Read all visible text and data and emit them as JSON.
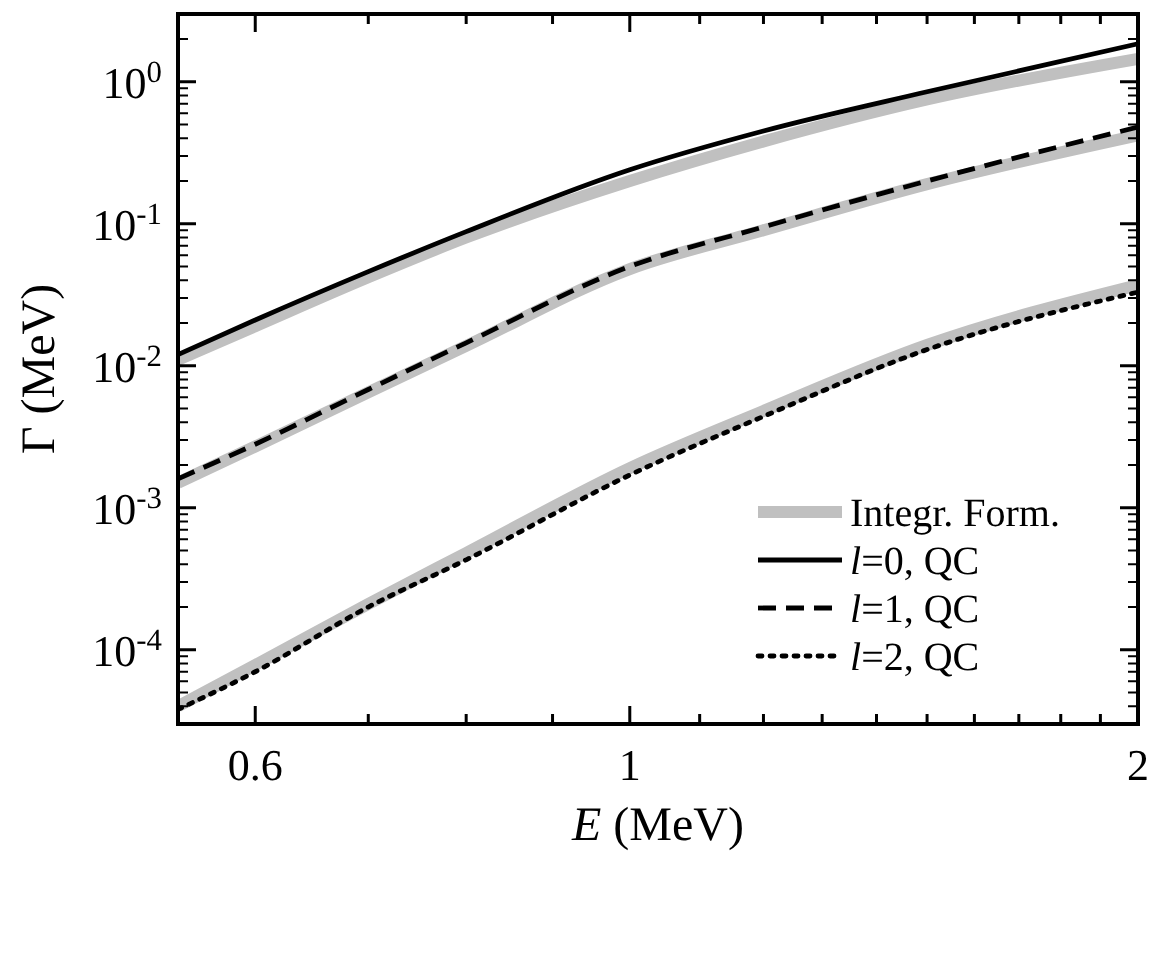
{
  "chart_data": {
    "type": "line",
    "xlabel": "E  (MeV)",
    "ylabel": "Γ  (MeV)",
    "log": "xy",
    "grid": false,
    "legend": "bottom right",
    "x": [
      0.54,
      0.6,
      0.7,
      0.8,
      1,
      1.2,
      1.5,
      2
    ],
    "xlim": [
      0.54,
      2
    ],
    "xticks": [
      0.6,
      {
        "value": 0.7,
        "label": null
      },
      {
        "value": 0.8,
        "label": null
      },
      {
        "value": 0.9,
        "label": null
      },
      1,
      {
        "value": 1.1,
        "label": null
      },
      {
        "value": 1.2,
        "label": null
      },
      {
        "value": 1.3,
        "label": null
      },
      {
        "value": 1.4,
        "label": null
      },
      {
        "value": 1.5,
        "label": null
      },
      {
        "value": 1.6,
        "label": null
      },
      {
        "value": 1.7,
        "label": null
      },
      {
        "value": 1.8,
        "label": null
      },
      {
        "value": 1.9,
        "label": null
      },
      2
    ],
    "ylim": [
      3e-05,
      3
    ],
    "yticks": [
      {
        "value": 0.0001,
        "label": "10$^{-4}$"
      },
      {
        "value": 0.001,
        "label": "10$^{-3}$"
      },
      {
        "value": 0.01,
        "label": "10$^{-2}$"
      },
      {
        "value": 0.1,
        "label": "10$^{-1}$"
      },
      {
        "value": 1,
        "label": "10$^{0}$"
      }
    ],
    "series": [
      {
        "name": "Integr. Form.",
        "color": "#c0c0c0",
        "line_style": "solid",
        "values": [
          0.011,
          0.019,
          0.042,
          0.08,
          0.2,
          0.38,
          0.75,
          1.45
        ]
      },
      {
        "color": "#c0c0c0",
        "line_style": "solid",
        "values": [
          0.0015,
          0.0027,
          0.0065,
          0.0138,
          0.048,
          0.09,
          0.19,
          0.42
        ]
      },
      {
        "color": "#c0c0c0",
        "line_style": "solid",
        "values": [
          4e-05,
          7.8e-05,
          0.00021,
          0.00048,
          0.0019,
          0.0048,
          0.014,
          0.037
        ]
      },
      {
        "name": "l=0, QC",
        "color": "#000000",
        "line_style": "solid",
        "values": [
          0.012,
          0.021,
          0.046,
          0.088,
          0.24,
          0.45,
          0.85,
          1.85
        ]
      },
      {
        "name": "l=1, QC",
        "color": "#000000",
        "line_style": "dashed",
        "values": [
          0.0016,
          0.0028,
          0.0068,
          0.0145,
          0.05,
          0.095,
          0.2,
          0.48
        ]
      },
      {
        "name": "l=2, QC",
        "color": "#000000",
        "line_style": "dotted",
        "values": [
          3.8e-05,
          7e-05,
          0.0002,
          0.00043,
          0.0017,
          0.0044,
          0.013,
          0.033
        ]
      }
    ]
  }
}
